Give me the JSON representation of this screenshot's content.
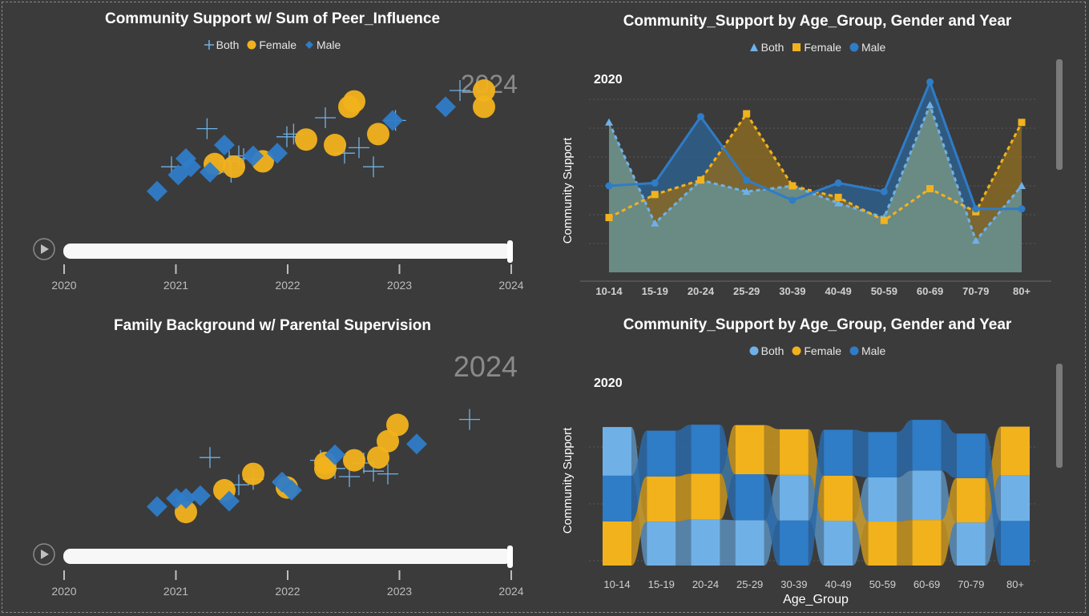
{
  "colors": {
    "background": "#3b3b3b",
    "both": "#6fb1e7",
    "female": "#f2b21c",
    "male": "#2f7cc7",
    "axis_text": "#bdbdbd",
    "play_track": "#f7f7f7"
  },
  "scatter1": {
    "title": "Community Support w/ Sum of Peer_Influence",
    "legend": [
      {
        "label": "Both",
        "icon": "plus-marker-icon"
      },
      {
        "label": "Female",
        "icon": "circle-marker-icon"
      },
      {
        "label": "Male",
        "icon": "diamond-marker-icon"
      }
    ],
    "watermark": "2024",
    "play_axis": [
      "2020",
      "2021",
      "2022",
      "2023",
      "2024"
    ],
    "play_icon": "play-icon"
  },
  "scatter2": {
    "title": "Family Background w/ Parental Supervision",
    "legend": [
      {
        "label": "Both",
        "icon": "plus-marker-icon"
      },
      {
        "label": "Female",
        "icon": "circle-marker-icon"
      },
      {
        "label": "Male",
        "icon": "diamond-marker-icon"
      }
    ],
    "watermark": "2024",
    "play_axis": [
      "2020",
      "2021",
      "2022",
      "2023",
      "2024"
    ],
    "play_icon": "play-icon"
  },
  "area_chart": {
    "title": "Community_Support by Age_Group, Gender and Year",
    "legend": [
      {
        "label": "Both",
        "icon": "triangle-marker-icon"
      },
      {
        "label": "Female",
        "icon": "square-marker-icon"
      },
      {
        "label": "Male",
        "icon": "circle-marker-icon"
      }
    ],
    "year": "2020",
    "ylabel": "Community Support"
  },
  "ribbon_chart": {
    "title": "Community_Support by Age_Group, Gender and Year",
    "legend": [
      {
        "label": "Both",
        "icon": "circle-marker-icon"
      },
      {
        "label": "Female",
        "icon": "circle-marker-icon"
      },
      {
        "label": "Male",
        "icon": "circle-marker-icon"
      }
    ],
    "year": "2020",
    "ylabel": "Community Support",
    "xlabel": "Age_Group"
  },
  "chart_data": [
    {
      "type": "scatter",
      "title": "Community Support w/ Sum of Peer_Influence",
      "xlabel": "",
      "ylabel": "",
      "grid": false,
      "legend_position": "top",
      "series": [
        {
          "name": "Both",
          "marker": "plus",
          "points": [
            [
              2.45,
              4.35
            ],
            [
              2.82,
              5.05
            ],
            [
              3.07,
              4.25
            ],
            [
              3.05,
              4.45
            ],
            [
              3.15,
              4.55
            ],
            [
              3.2,
              4.5
            ],
            [
              3.65,
              4.9
            ],
            [
              3.72,
              4.95
            ],
            [
              4.05,
              5.25
            ],
            [
              4.25,
              4.6
            ],
            [
              4.4,
              4.7
            ],
            [
              4.55,
              4.35
            ],
            [
              4.78,
              5.2
            ],
            [
              5.45,
              5.75
            ]
          ]
        },
        {
          "name": "Female",
          "marker": "circle",
          "points": [
            [
              2.9,
              4.4
            ],
            [
              3.1,
              4.35
            ],
            [
              3.4,
              4.45
            ],
            [
              3.85,
              4.85
            ],
            [
              4.15,
              4.75
            ],
            [
              4.3,
              5.45
            ],
            [
              4.35,
              5.55
            ],
            [
              4.6,
              4.95
            ],
            [
              5.7,
              5.75
            ],
            [
              5.7,
              5.45
            ]
          ]
        },
        {
          "name": "Male",
          "marker": "diamond",
          "points": [
            [
              2.3,
              3.9
            ],
            [
              2.52,
              4.2
            ],
            [
              2.6,
              4.5
            ],
            [
              2.65,
              4.35
            ],
            [
              2.85,
              4.25
            ],
            [
              3.0,
              4.75
            ],
            [
              3.3,
              4.55
            ],
            [
              3.55,
              4.6
            ],
            [
              4.75,
              5.2
            ],
            [
              5.3,
              5.45
            ]
          ]
        }
      ]
    },
    {
      "type": "area",
      "title": "Community_Support by Age_Group, Gender and Year",
      "xlabel": "",
      "ylabel": "Community Support",
      "categories": [
        "10-14",
        "15-19",
        "20-24",
        "25-29",
        "30-39",
        "40-49",
        "50-59",
        "60-69",
        "70-79",
        "80+"
      ],
      "series": [
        {
          "name": "Both",
          "marker": "triangle",
          "values": [
            3.52,
            3.17,
            3.32,
            3.28,
            3.3,
            3.24,
            3.19,
            3.58,
            3.11,
            3.3
          ]
        },
        {
          "name": "Female",
          "marker": "square",
          "values": [
            3.19,
            3.27,
            3.32,
            3.55,
            3.3,
            3.26,
            3.18,
            3.29,
            3.21,
            3.52
          ]
        },
        {
          "name": "Male",
          "marker": "circle",
          "values": [
            3.3,
            3.31,
            3.54,
            3.32,
            3.25,
            3.31,
            3.28,
            3.66,
            3.22,
            3.22
          ]
        }
      ],
      "ylim": [
        3.0,
        3.7
      ],
      "grid": true
    },
    {
      "type": "scatter",
      "title": "Family Background w/ Parental Supervision",
      "xlabel": "",
      "ylabel": "",
      "grid": false,
      "legend_position": "top",
      "series": [
        {
          "name": "Both",
          "marker": "plus",
          "points": [
            [
              2.85,
              4.6
            ],
            [
              3.15,
              4.1
            ],
            [
              3.3,
              4.2
            ],
            [
              4.0,
              4.55
            ],
            [
              4.15,
              4.4
            ],
            [
              4.3,
              4.25
            ],
            [
              4.45,
              4.5
            ],
            [
              4.55,
              4.35
            ],
            [
              4.7,
              4.3
            ],
            [
              5.55,
              5.3
            ]
          ]
        },
        {
          "name": "Female",
          "marker": "circle",
          "points": [
            [
              2.6,
              3.6
            ],
            [
              3.0,
              4.0
            ],
            [
              3.3,
              4.3
            ],
            [
              3.65,
              4.05
            ],
            [
              4.05,
              4.4
            ],
            [
              4.05,
              4.5
            ],
            [
              4.35,
              4.55
            ],
            [
              4.6,
              4.6
            ],
            [
              4.7,
              4.9
            ],
            [
              4.8,
              5.2
            ]
          ]
        },
        {
          "name": "Male",
          "marker": "diamond",
          "points": [
            [
              2.3,
              3.7
            ],
            [
              2.5,
              3.85
            ],
            [
              2.6,
              3.85
            ],
            [
              2.75,
              3.9
            ],
            [
              3.05,
              3.8
            ],
            [
              3.6,
              4.15
            ],
            [
              3.7,
              4.0
            ],
            [
              4.15,
              4.65
            ],
            [
              5.0,
              4.85
            ]
          ]
        }
      ]
    },
    {
      "type": "ribbon",
      "title": "Community_Support by Age_Group, Gender and Year",
      "xlabel": "Age_Group",
      "ylabel": "Community Support",
      "categories": [
        "10-14",
        "15-19",
        "20-24",
        "25-29",
        "30-39",
        "40-49",
        "50-59",
        "60-69",
        "70-79",
        "80+"
      ],
      "series": [
        {
          "name": "Both",
          "values": [
            3.52,
            3.17,
            3.32,
            3.28,
            3.3,
            3.24,
            3.19,
            3.58,
            3.11,
            3.3
          ]
        },
        {
          "name": "Female",
          "values": [
            3.19,
            3.27,
            3.32,
            3.55,
            3.3,
            3.26,
            3.18,
            3.29,
            3.21,
            3.52
          ]
        },
        {
          "name": "Male",
          "values": [
            3.3,
            3.31,
            3.54,
            3.32,
            3.25,
            3.31,
            3.28,
            3.66,
            3.22,
            3.22
          ]
        }
      ]
    }
  ]
}
